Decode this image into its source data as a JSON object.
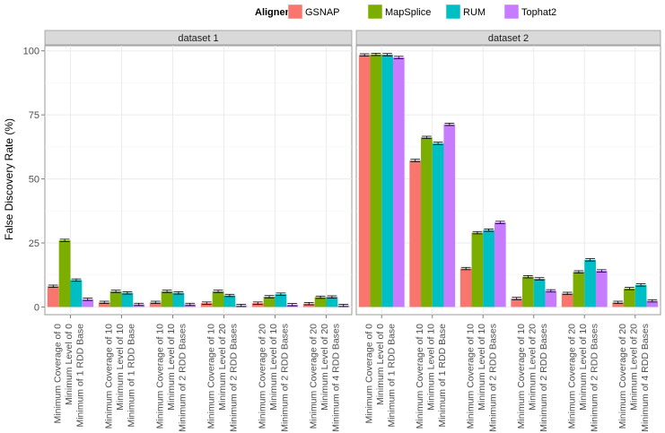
{
  "chart_data": {
    "type": "bar",
    "ylabel": "False Discovery Rate (%)",
    "xlabel": "",
    "ylim": [
      -3,
      102
    ],
    "yticks": [
      0,
      25,
      50,
      75,
      100
    ],
    "grid": true,
    "legend": {
      "title": "Aligner",
      "placement": "top",
      "entries": [
        "GSNAP",
        "MapSplice",
        "RUM",
        "Tophat2"
      ]
    },
    "colors": {
      "GSNAP": "#F8766D",
      "MapSplice": "#7CAE00",
      "RUM": "#00BFC4",
      "Tophat2": "#C77CFF"
    },
    "panels": [
      {
        "title": "dataset 1",
        "categories": [
          [
            "Minimum Coverage of 0",
            "Minimum Level of 0",
            "Minimum of 1 RDD Base"
          ],
          [
            "Minimum Coverage of 10",
            "Minimum Level of 10",
            "Minimum of 1 RDD Base"
          ],
          [
            "Minimum Coverage of 10",
            "Minimum Level of 10",
            "Minimum of 2 RDD Bases"
          ],
          [
            "Minimum Coverage of 10",
            "Minimum Level of 20",
            "Minimum of 2 RDD Bases"
          ],
          [
            "Minimum Coverage of 20",
            "Minimum Level of 10",
            "Minimum of 2 RDD Bases"
          ],
          [
            "Minimum Coverage of 20",
            "Minimum Level of 20",
            "Minimum of 4 RDD Bases"
          ]
        ],
        "series": [
          {
            "name": "GSNAP",
            "values": [
              8.1,
              1.8,
              1.8,
              1.5,
              1.5,
              1.3
            ]
          },
          {
            "name": "MapSplice",
            "values": [
              26.0,
              6.1,
              6.1,
              6.1,
              4.0,
              3.8
            ]
          },
          {
            "name": "RUM",
            "values": [
              10.5,
              5.5,
              5.5,
              4.5,
              5.0,
              3.9
            ]
          },
          {
            "name": "Tophat2",
            "values": [
              3.0,
              1.0,
              1.0,
              0.6,
              0.9,
              0.6
            ]
          }
        ]
      },
      {
        "title": "dataset 2",
        "categories": [
          [
            "Minimum Coverage of 0",
            "Minimum Level of 0",
            "Minimum of 1 RDD Base"
          ],
          [
            "Minimum Coverage of 10",
            "Minimum Level of 10",
            "Minimum of 1 RDD Base"
          ],
          [
            "Minimum Coverage of 10",
            "Minimum Level of 10",
            "Minimum of 2 RDD Bases"
          ],
          [
            "Minimum Coverage of 10",
            "Minimum Level of 20",
            "Minimum of 2 RDD Bases"
          ],
          [
            "Minimum Coverage of 20",
            "Minimum Level of 10",
            "Minimum of 2 RDD Bases"
          ],
          [
            "Minimum Coverage of 20",
            "Minimum Level of 20",
            "Minimum of 4 RDD Bases"
          ]
        ],
        "series": [
          {
            "name": "GSNAP",
            "values": [
              98.4,
              57.2,
              15.0,
              3.3,
              5.3,
              1.8
            ]
          },
          {
            "name": "MapSplice",
            "values": [
              98.6,
              66.2,
              29.0,
              11.8,
              13.7,
              7.2
            ]
          },
          {
            "name": "RUM",
            "values": [
              98.5,
              63.9,
              30.0,
              11.0,
              18.4,
              8.6
            ]
          },
          {
            "name": "Tophat2",
            "values": [
              97.4,
              71.3,
              33.0,
              6.3,
              14.1,
              2.4
            ]
          }
        ]
      }
    ]
  }
}
